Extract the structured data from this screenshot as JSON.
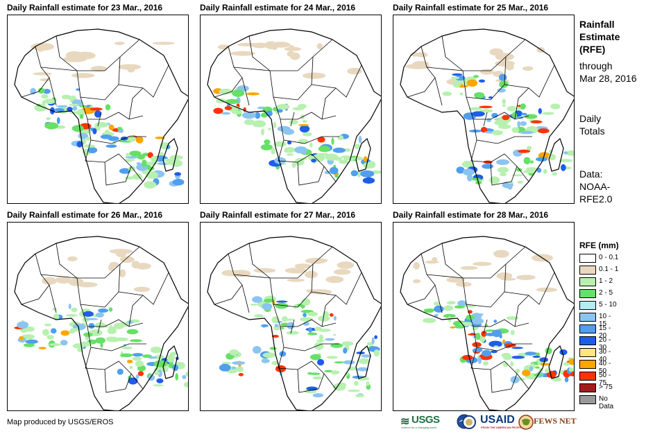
{
  "panels": [
    {
      "title": "Daily Rainfall estimate for 23 Mar., 2016"
    },
    {
      "title": "Daily Rainfall estimate for 24 Mar., 2016"
    },
    {
      "title": "Daily Rainfall estimate for 25 Mar., 2016"
    },
    {
      "title": "Daily Rainfall estimate for 26 Mar., 2016"
    },
    {
      "title": "Daily Rainfall estimate for 27 Mar., 2016"
    },
    {
      "title": "Daily Rainfall estimate for 28 Mar., 2016"
    }
  ],
  "sidebar": {
    "title_lines": [
      "Rainfall",
      "Estimate",
      "(RFE)"
    ],
    "through_lines": [
      "through",
      "Mar 28, 2016"
    ],
    "totals_lines": [
      "Daily",
      "Totals"
    ],
    "data_lines": [
      "Data:",
      "NOAA-",
      "RFE2.0"
    ]
  },
  "legend": {
    "title": "RFE (mm)",
    "items": [
      {
        "label": "0 - 0.1",
        "color": "#ffffff"
      },
      {
        "label": "0.1 - 1",
        "color": "#e8d8bf"
      },
      {
        "label": "1 - 2",
        "color": "#b8f0b0"
      },
      {
        "label": "2 - 5",
        "color": "#66e066"
      },
      {
        "label": "5 - 10",
        "color": "#b5ecf2"
      },
      {
        "label": "10 - 15",
        "color": "#8cc4f0"
      },
      {
        "label": "15 - 20",
        "color": "#4f9ef0"
      },
      {
        "label": "20 - 30",
        "color": "#1f5de8"
      },
      {
        "label": "30 - 40",
        "color": "#ffe680"
      },
      {
        "label": "40 - 50",
        "color": "#ffa500"
      },
      {
        "label": "50 - 75",
        "color": "#ff3300"
      },
      {
        "label": "> 75",
        "color": "#a51c1c"
      },
      {
        "label": "No Data",
        "color": "#999999"
      }
    ]
  },
  "credit": "Map produced by USGS/EROS",
  "logos": {
    "usgs": "USGS",
    "usgs_tagline": "science for a changing world",
    "usaid": "USAID",
    "usaid_tagline": "FROM THE AMERICAN PEOPLE",
    "fewsnet": "FEWS NET"
  }
}
